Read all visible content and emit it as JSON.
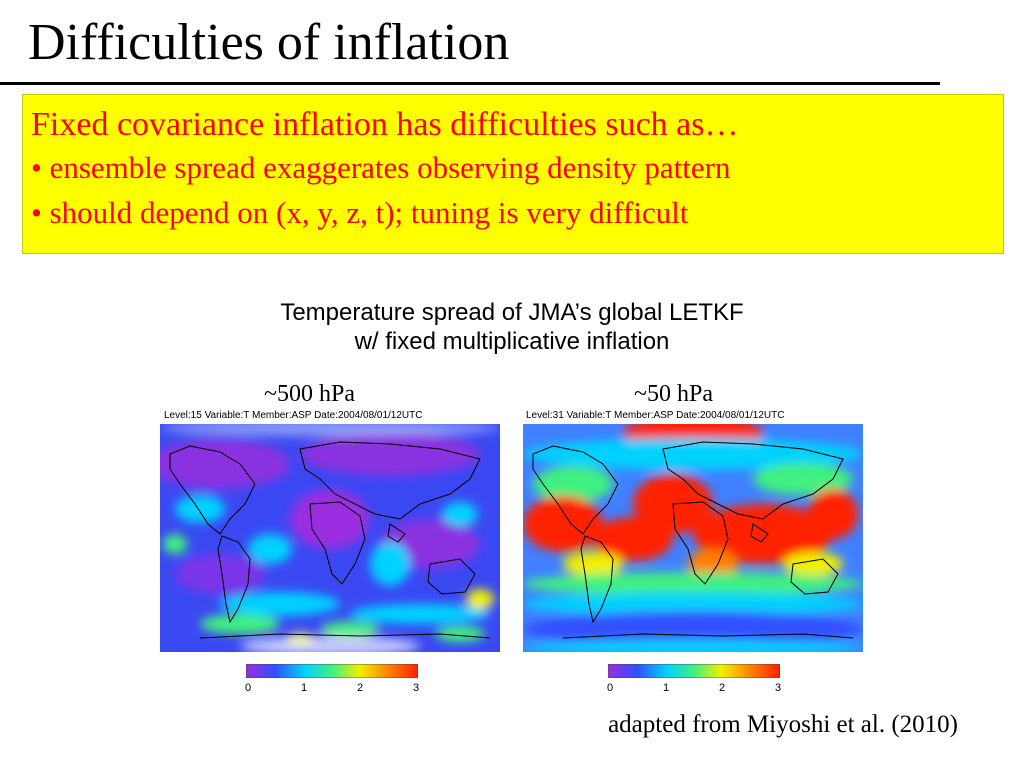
{
  "slide": {
    "title": "Difficulties of inflation",
    "callout": {
      "heading": "Fixed covariance inflation has difficulties such as…",
      "bullets": [
        "• ensemble spread exaggerates observing density pattern",
        "• should depend on (x, y, z, t); tuning is very difficult"
      ]
    },
    "figure_caption": [
      "Temperature spread of JMA’s global LETKF",
      "w/ fixed multiplicative inflation"
    ],
    "panels": [
      {
        "level_label": "~500 hPa",
        "header": "Level:15 Variable:T Member:ASP Date:2004/08/01/12UTC",
        "colorbar_ticks": [
          "0",
          "1",
          "2",
          "3"
        ]
      },
      {
        "level_label": "~50 hPa",
        "header": "Level:31 Variable:T Member:ASP Date:2004/08/01/12UTC",
        "colorbar_ticks": [
          "0",
          "1",
          "2",
          "3"
        ]
      }
    ],
    "credit": "adapted from Miyoshi et al. (2010)"
  },
  "colors": {
    "callout_background": "#ffff00",
    "callout_text": "#ff0000",
    "colormap": [
      "#9a2fe0",
      "#3050ff",
      "#00d2ff",
      "#40f080",
      "#f0f000",
      "#ff8000",
      "#ff2000"
    ]
  }
}
